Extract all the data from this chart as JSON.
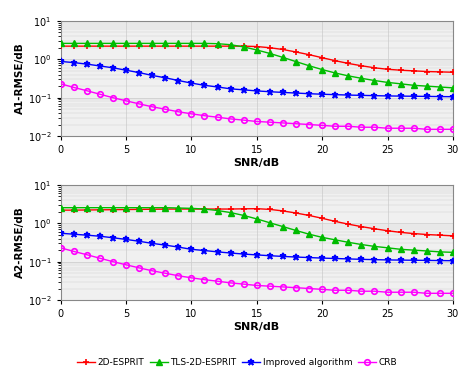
{
  "snr": [
    0,
    1,
    2,
    3,
    4,
    5,
    6,
    7,
    8,
    9,
    10,
    11,
    12,
    13,
    14,
    15,
    16,
    17,
    18,
    19,
    20,
    21,
    22,
    23,
    24,
    25,
    26,
    27,
    28,
    29,
    30
  ],
  "A1": {
    "2D_ESPRIT": [
      2.2,
      2.2,
      2.2,
      2.2,
      2.2,
      2.2,
      2.2,
      2.2,
      2.2,
      2.2,
      2.2,
      2.2,
      2.2,
      2.2,
      2.2,
      2.15,
      2.0,
      1.8,
      1.55,
      1.32,
      1.1,
      0.92,
      0.78,
      0.68,
      0.6,
      0.55,
      0.52,
      0.5,
      0.48,
      0.47,
      0.46
    ],
    "TLS_2D_ESPRIT": [
      2.6,
      2.6,
      2.6,
      2.6,
      2.6,
      2.6,
      2.6,
      2.6,
      2.6,
      2.6,
      2.6,
      2.6,
      2.55,
      2.4,
      2.1,
      1.75,
      1.42,
      1.12,
      0.87,
      0.68,
      0.54,
      0.44,
      0.37,
      0.32,
      0.28,
      0.25,
      0.23,
      0.21,
      0.2,
      0.19,
      0.18
    ],
    "Improved": [
      0.88,
      0.82,
      0.75,
      0.67,
      0.6,
      0.52,
      0.45,
      0.38,
      0.33,
      0.28,
      0.24,
      0.21,
      0.19,
      0.17,
      0.16,
      0.15,
      0.143,
      0.137,
      0.132,
      0.127,
      0.123,
      0.12,
      0.117,
      0.115,
      0.113,
      0.111,
      0.11,
      0.109,
      0.108,
      0.107,
      0.106
    ],
    "CRB": [
      0.23,
      0.185,
      0.152,
      0.123,
      0.1,
      0.083,
      0.069,
      0.058,
      0.05,
      0.043,
      0.038,
      0.034,
      0.031,
      0.028,
      0.026,
      0.024,
      0.023,
      0.022,
      0.021,
      0.02,
      0.019,
      0.018,
      0.018,
      0.017,
      0.017,
      0.016,
      0.016,
      0.016,
      0.015,
      0.015,
      0.015
    ]
  },
  "A2": {
    "2D_ESPRIT": [
      2.2,
      2.2,
      2.22,
      2.24,
      2.26,
      2.28,
      2.3,
      2.32,
      2.34,
      2.35,
      2.35,
      2.35,
      2.35,
      2.35,
      2.38,
      2.4,
      2.3,
      2.1,
      1.85,
      1.6,
      1.35,
      1.12,
      0.95,
      0.82,
      0.72,
      0.64,
      0.58,
      0.54,
      0.51,
      0.49,
      0.47
    ],
    "TLS_2D_ESPRIT": [
      2.55,
      2.55,
      2.55,
      2.55,
      2.55,
      2.55,
      2.55,
      2.55,
      2.55,
      2.5,
      2.45,
      2.35,
      2.15,
      1.9,
      1.6,
      1.3,
      1.03,
      0.82,
      0.65,
      0.52,
      0.43,
      0.37,
      0.32,
      0.28,
      0.25,
      0.23,
      0.21,
      0.2,
      0.19,
      0.18,
      0.175
    ],
    "Improved": [
      0.55,
      0.52,
      0.49,
      0.46,
      0.42,
      0.38,
      0.34,
      0.3,
      0.27,
      0.24,
      0.21,
      0.195,
      0.18,
      0.168,
      0.158,
      0.15,
      0.143,
      0.137,
      0.132,
      0.128,
      0.124,
      0.121,
      0.118,
      0.115,
      0.113,
      0.111,
      0.11,
      0.109,
      0.108,
      0.107,
      0.106
    ],
    "CRB": [
      0.23,
      0.185,
      0.152,
      0.123,
      0.1,
      0.083,
      0.069,
      0.058,
      0.05,
      0.043,
      0.038,
      0.034,
      0.031,
      0.028,
      0.026,
      0.024,
      0.023,
      0.022,
      0.021,
      0.02,
      0.019,
      0.018,
      0.018,
      0.017,
      0.017,
      0.016,
      0.016,
      0.016,
      0.015,
      0.015,
      0.015
    ]
  },
  "colors": {
    "2D_ESPRIT": "#ff0000",
    "TLS_2D_ESPRIT": "#00bb00",
    "Improved": "#0000ff",
    "CRB": "#ff00ff"
  },
  "markers": {
    "2D_ESPRIT": "+",
    "TLS_2D_ESPRIT": "^",
    "Improved": "*",
    "CRB": "o"
  },
  "markersizes": {
    "2D_ESPRIT": 5,
    "TLS_2D_ESPRIT": 4,
    "Improved": 5,
    "CRB": 4
  },
  "legend_labels": [
    "2D-ESPRIT",
    "TLS-2D-ESPRIT",
    "Improved algorithm",
    "CRB"
  ],
  "ylabel_top": "A1-RMSE/dB",
  "ylabel_bottom": "A2-RMSE/dB",
  "xlabel": "SNR/dB",
  "ylim": [
    0.01,
    10
  ],
  "xlim": [
    0,
    30
  ],
  "xticks": [
    0,
    5,
    10,
    15,
    20,
    25,
    30
  ],
  "grid_color": "#cccccc",
  "bg_color": "#f0f0f0",
  "fig_bg": "#ffffff"
}
